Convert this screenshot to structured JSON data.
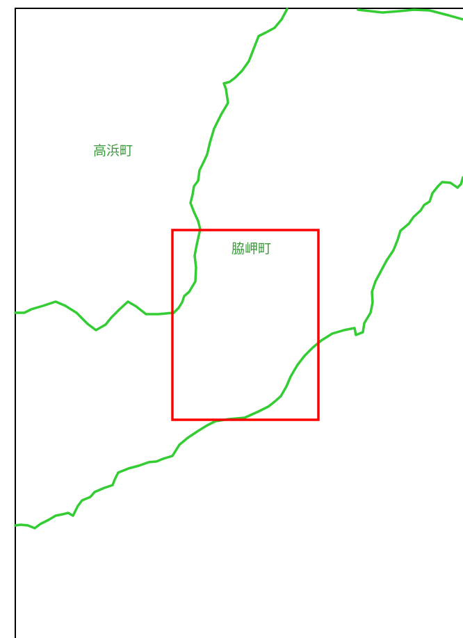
{
  "map": {
    "colors": {
      "background": "#ffffff",
      "frame": "#000000",
      "boundary": "#33cc33",
      "label": "#3a9a3a",
      "highlight": "#ff0000"
    },
    "labels": {
      "takahama": "高浜町",
      "wakimisaki": "脇岬町"
    }
  }
}
